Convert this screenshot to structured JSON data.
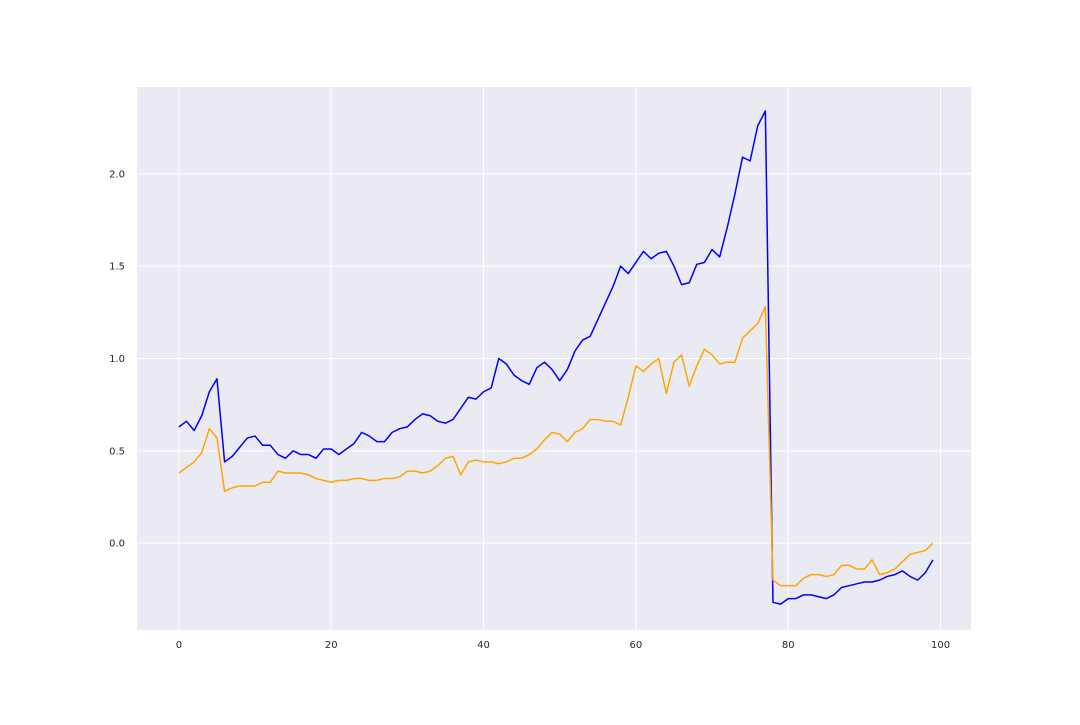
{
  "chart_data": {
    "type": "line",
    "title": "",
    "xlabel": "",
    "ylabel": "",
    "xlim": [
      -5.5,
      104
    ],
    "ylim": [
      -0.47,
      2.47
    ],
    "grid": true,
    "background": "#eaeaf2",
    "grid_color": "#ffffff",
    "xticks": [
      0,
      20,
      40,
      60,
      80,
      100
    ],
    "yticks": [
      0.0,
      0.5,
      1.0,
      1.5,
      2.0
    ],
    "xtick_labels": [
      "0",
      "20",
      "40",
      "60",
      "80",
      "100"
    ],
    "ytick_labels": [
      "0.0",
      "0.5",
      "1.0",
      "1.5",
      "2.0"
    ],
    "series": [
      {
        "color": "#0000ff",
        "x": [
          0,
          1,
          2,
          3,
          4,
          5,
          6,
          7,
          8,
          9,
          10,
          11,
          12,
          13,
          14,
          15,
          16,
          17,
          18,
          19,
          20,
          21,
          22,
          23,
          24,
          25,
          26,
          27,
          28,
          29,
          30,
          31,
          32,
          33,
          34,
          35,
          36,
          37,
          38,
          39,
          40,
          41,
          42,
          43,
          44,
          45,
          46,
          47,
          48,
          49,
          50,
          51,
          52,
          53,
          54,
          55,
          56,
          57,
          58,
          59,
          60,
          61,
          62,
          63,
          64,
          65,
          66,
          67,
          68,
          69,
          70,
          71,
          72,
          73,
          74,
          75,
          76,
          77,
          78,
          79,
          80,
          81,
          82,
          83,
          84,
          85,
          86,
          87,
          88,
          89,
          90,
          91,
          92,
          93,
          94,
          95,
          96,
          97,
          98,
          99
        ],
        "values": [
          0.63,
          0.66,
          0.61,
          0.69,
          0.82,
          0.89,
          0.44,
          0.47,
          0.52,
          0.57,
          0.58,
          0.53,
          0.53,
          0.48,
          0.46,
          0.5,
          0.48,
          0.48,
          0.46,
          0.51,
          0.51,
          0.48,
          0.51,
          0.54,
          0.6,
          0.58,
          0.55,
          0.55,
          0.6,
          0.62,
          0.63,
          0.67,
          0.7,
          0.69,
          0.66,
          0.65,
          0.67,
          0.73,
          0.79,
          0.78,
          0.82,
          0.84,
          1.0,
          0.97,
          0.91,
          0.88,
          0.86,
          0.95,
          0.98,
          0.94,
          0.88,
          0.94,
          1.04,
          1.1,
          1.12,
          1.21,
          1.3,
          1.39,
          1.5,
          1.46,
          1.52,
          1.58,
          1.54,
          1.57,
          1.58,
          1.5,
          1.4,
          1.41,
          1.51,
          1.52,
          1.59,
          1.55,
          1.71,
          1.89,
          2.09,
          2.07,
          2.26,
          2.34,
          -0.32,
          -0.33,
          -0.3,
          -0.3,
          -0.28,
          -0.28,
          -0.29,
          -0.3,
          -0.28,
          -0.24,
          -0.23,
          -0.22,
          -0.21,
          -0.21,
          -0.2,
          -0.18,
          -0.17,
          -0.15,
          -0.18,
          -0.2,
          -0.16,
          -0.09
        ]
      },
      {
        "color": "#ffa500",
        "x": [
          0,
          1,
          2,
          3,
          4,
          5,
          6,
          7,
          8,
          9,
          10,
          11,
          12,
          13,
          14,
          15,
          16,
          17,
          18,
          19,
          20,
          21,
          22,
          23,
          24,
          25,
          26,
          27,
          28,
          29,
          30,
          31,
          32,
          33,
          34,
          35,
          36,
          37,
          38,
          39,
          40,
          41,
          42,
          43,
          44,
          45,
          46,
          47,
          48,
          49,
          50,
          51,
          52,
          53,
          54,
          55,
          56,
          57,
          58,
          59,
          60,
          61,
          62,
          63,
          64,
          65,
          66,
          67,
          68,
          69,
          70,
          71,
          72,
          73,
          74,
          75,
          76,
          77,
          78,
          79,
          80,
          81,
          82,
          83,
          84,
          85,
          86,
          87,
          88,
          89,
          90,
          91,
          92,
          93,
          94,
          95,
          96,
          97,
          98,
          99
        ],
        "values": [
          0.38,
          0.41,
          0.44,
          0.49,
          0.62,
          0.57,
          0.28,
          0.3,
          0.31,
          0.31,
          0.31,
          0.33,
          0.33,
          0.39,
          0.38,
          0.38,
          0.38,
          0.37,
          0.35,
          0.34,
          0.33,
          0.34,
          0.34,
          0.35,
          0.35,
          0.34,
          0.34,
          0.35,
          0.35,
          0.36,
          0.39,
          0.39,
          0.38,
          0.39,
          0.42,
          0.46,
          0.47,
          0.37,
          0.44,
          0.45,
          0.44,
          0.44,
          0.43,
          0.44,
          0.46,
          0.46,
          0.48,
          0.51,
          0.56,
          0.6,
          0.59,
          0.55,
          0.6,
          0.62,
          0.67,
          0.67,
          0.66,
          0.66,
          0.64,
          0.79,
          0.96,
          0.93,
          0.97,
          1.0,
          0.81,
          0.98,
          1.02,
          0.85,
          0.96,
          1.05,
          1.02,
          0.97,
          0.98,
          0.98,
          1.11,
          1.15,
          1.19,
          1.28,
          -0.2,
          -0.23,
          -0.23,
          -0.23,
          -0.19,
          -0.17,
          -0.17,
          -0.18,
          -0.17,
          -0.12,
          -0.12,
          -0.14,
          -0.14,
          -0.09,
          -0.17,
          -0.16,
          -0.14,
          -0.1,
          -0.06,
          -0.05,
          -0.04,
          0.0
        ]
      }
    ]
  }
}
